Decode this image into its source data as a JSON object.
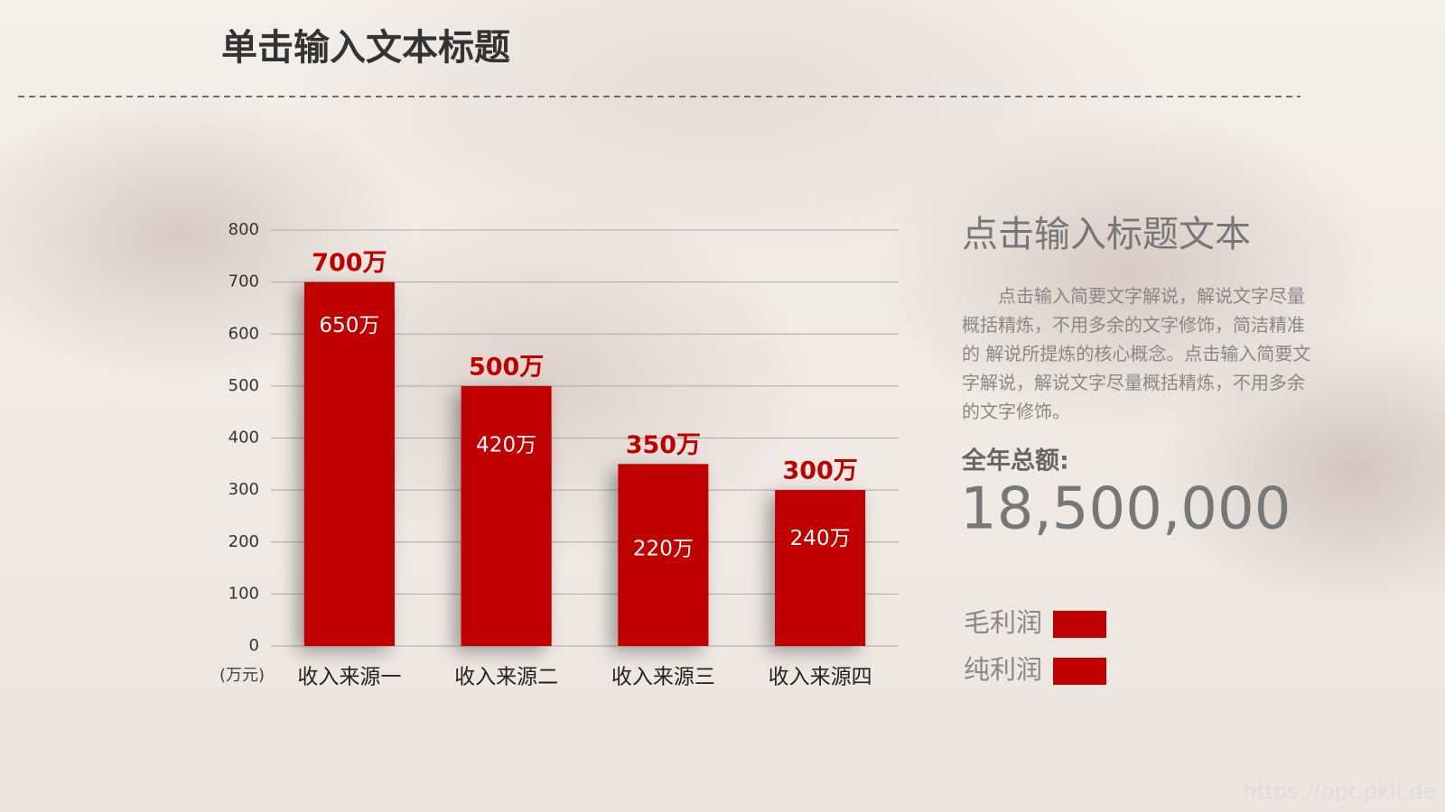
{
  "title": "单击输入文本标题",
  "chart_data": {
    "type": "bar",
    "y_label": "(万元)",
    "categories": [
      "收入来源一",
      "收入来源二",
      "收入来源三",
      "收入来源四"
    ],
    "series": [
      {
        "name": "毛利润",
        "color": "#c00000",
        "values": [
          700,
          500,
          350,
          300
        ],
        "value_labels": [
          "700万",
          "500万",
          "350万",
          "300万"
        ]
      },
      {
        "name": "纯利润",
        "color": "#c00000",
        "values": [
          650,
          420,
          220,
          240
        ],
        "value_labels": [
          "650万",
          "420万",
          "220万",
          "240万"
        ]
      }
    ],
    "ylim": [
      0,
      800
    ],
    "yticks": [
      0,
      100,
      200,
      300,
      400,
      500,
      600,
      700,
      800
    ],
    "grid": true
  },
  "side_panel": {
    "title": "点击输入标题文本",
    "body": "点击输入简要文字解说，解说文字尽量概括精炼，不用多余的文字修饰，简洁精准的 解说所提炼的核心概念。点击输入简要文字解说，解说文字尽量概括精炼，不用多余的文字修饰。",
    "total_label": "全年总额:",
    "total_value": "18,500,000"
  },
  "watermark": "https://ppt.pkll.de"
}
